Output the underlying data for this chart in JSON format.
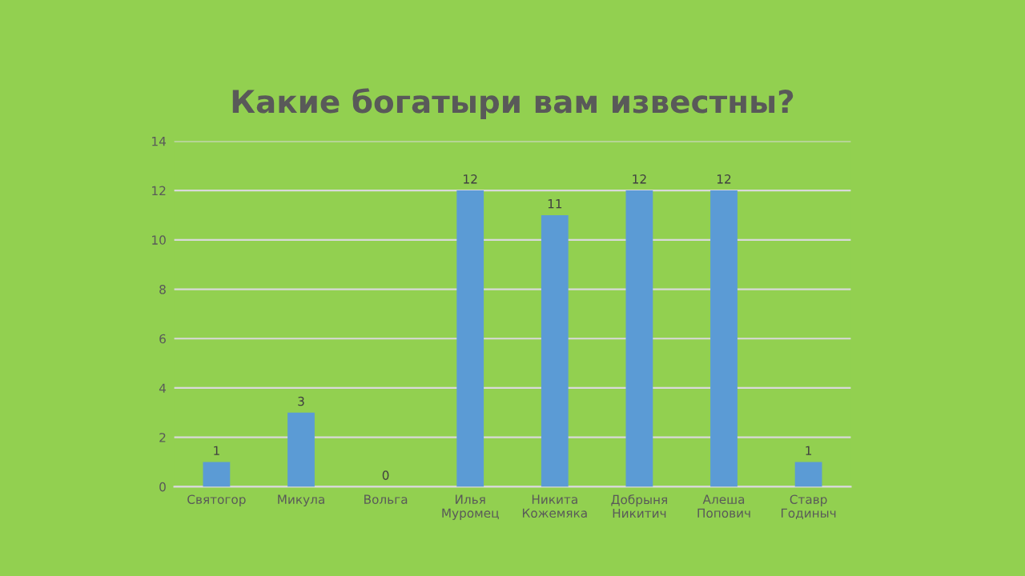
{
  "chart_data": {
    "type": "bar",
    "title": "Какие богатыри вам известны?",
    "categories": [
      "Святогор",
      "Микула",
      "Вольга",
      "Илья\nМуромец",
      "Никита\nКожемяка",
      "Добрыня\nНикитич",
      "Алеша\nПопович",
      "Ставр\nГодиныч"
    ],
    "values": [
      1,
      3,
      0,
      12,
      11,
      12,
      12,
      1
    ],
    "color": "#5b9bd5",
    "ylim": [
      0,
      14
    ],
    "yticks": [
      0,
      2,
      4,
      6,
      8,
      10,
      12,
      14
    ],
    "grid": "y",
    "data_labels": true
  }
}
